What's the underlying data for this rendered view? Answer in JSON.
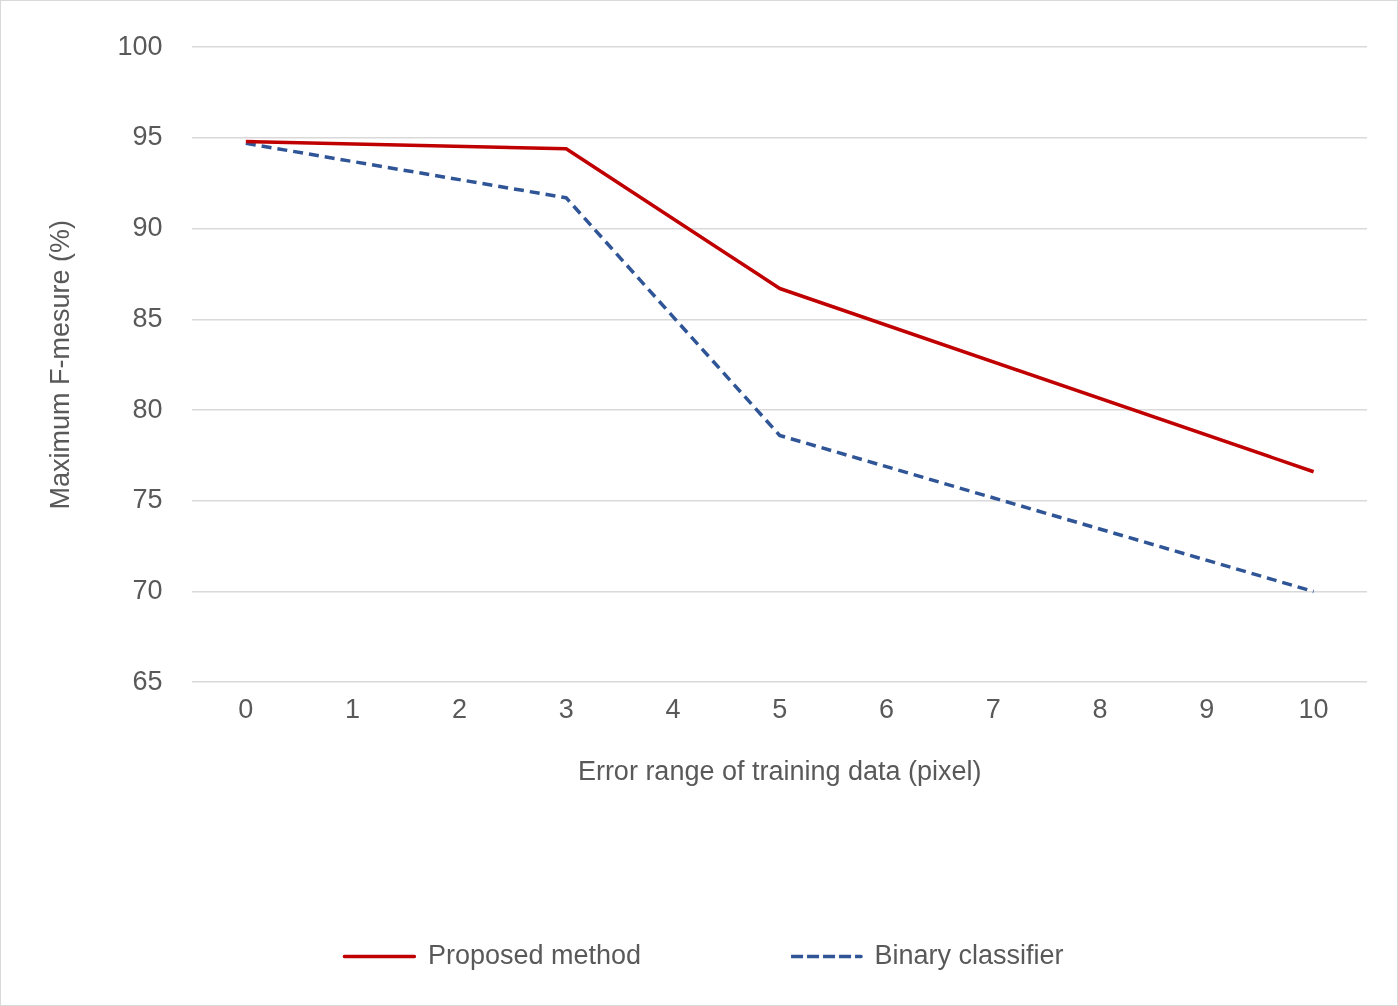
{
  "chart_data": {
    "type": "line",
    "xlabel": "Error range of training data (pixel)",
    "ylabel": "Maximum F-mesure (%)",
    "x": [
      0,
      3,
      5,
      10
    ],
    "xlim": [
      -0.5,
      10.5
    ],
    "xticks": [
      0,
      1,
      2,
      3,
      4,
      5,
      6,
      7,
      8,
      9,
      10
    ],
    "ylim": [
      65,
      100
    ],
    "yticks": [
      65,
      70,
      75,
      80,
      85,
      90,
      95,
      100
    ],
    "grid": "y",
    "legend": "bottom",
    "marker": "none",
    "series": [
      {
        "name": "Proposed method",
        "color": "#c00000",
        "line_style": "solid",
        "values": [
          94.8,
          94.4,
          86.7,
          76.6
        ]
      },
      {
        "name": "Binary classifier",
        "color": "#2f5597",
        "line_style": "dashed",
        "values": [
          94.7,
          91.7,
          78.6,
          70.0
        ]
      }
    ]
  }
}
